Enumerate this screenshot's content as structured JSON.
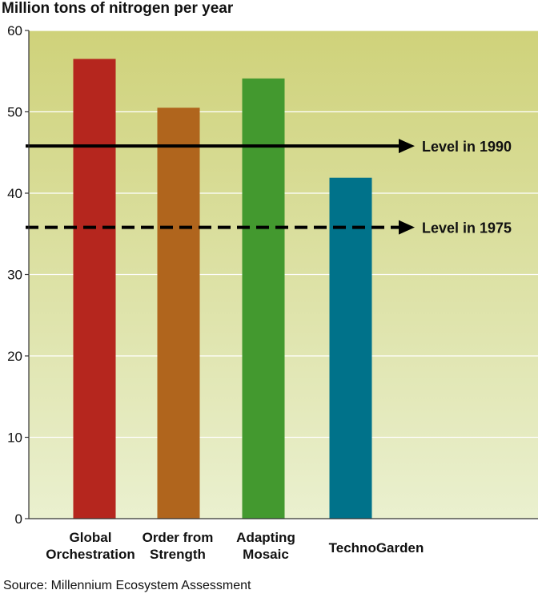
{
  "chart_data": {
    "type": "bar",
    "ylabel": "Million tons of nitrogen per year",
    "ylim": [
      0,
      60
    ],
    "yticks": [
      0,
      10,
      20,
      30,
      40,
      50,
      60
    ],
    "ytick_labels": [
      "0",
      "10",
      "20",
      "30",
      "40",
      "50",
      "60"
    ],
    "grid": true,
    "categories": [
      [
        "Global",
        "Orchestration"
      ],
      [
        "Order from",
        "Strength"
      ],
      [
        "Adapting",
        "Mosaic"
      ],
      [
        "TechnoGarden"
      ]
    ],
    "values": [
      56.5,
      50.5,
      54.1,
      41.9
    ],
    "bar_colors": [
      "#b5261e",
      "#b0651d",
      "#43992f",
      "#00728a"
    ],
    "reference_lines": [
      {
        "label": "Level in 1990",
        "value": 45.8,
        "style": "solid"
      },
      {
        "label": "Level in 1975",
        "value": 35.8,
        "style": "dashed"
      }
    ],
    "source": "Source: Millennium Ecosystem Assessment",
    "background_gradient": [
      "#cfd27a",
      "#eaf0cf"
    ]
  }
}
